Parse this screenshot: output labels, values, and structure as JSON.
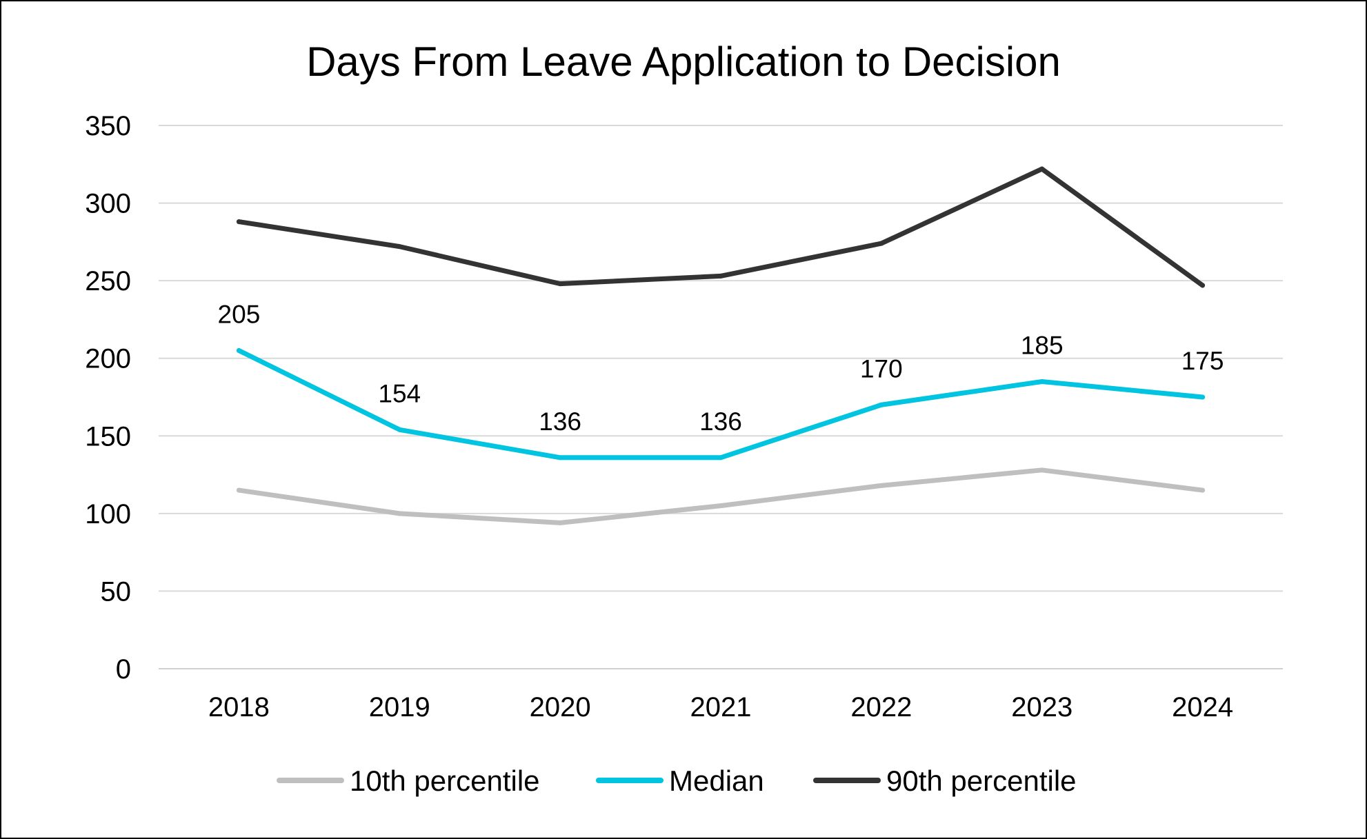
{
  "chart_data": {
    "type": "line",
    "title": "Days From Leave Application to Decision",
    "xlabel": "",
    "ylabel": "",
    "categories": [
      "2018",
      "2019",
      "2020",
      "2021",
      "2022",
      "2023",
      "2024"
    ],
    "ylim": [
      0,
      350
    ],
    "yticks": [
      0,
      50,
      100,
      150,
      200,
      250,
      300,
      350
    ],
    "grid": true,
    "legend_position": "bottom",
    "series": [
      {
        "name": "10th percentile",
        "color": "#BFBFBF",
        "values": [
          115,
          100,
          94,
          105,
          118,
          128,
          115
        ],
        "data_labels": false
      },
      {
        "name": "Median",
        "color": "#00C4E0",
        "values": [
          205,
          154,
          136,
          136,
          170,
          185,
          175
        ],
        "data_labels": true
      },
      {
        "name": "90th percentile",
        "color": "#333333",
        "values": [
          288,
          272,
          248,
          253,
          274,
          322,
          247
        ],
        "data_labels": false
      }
    ]
  }
}
